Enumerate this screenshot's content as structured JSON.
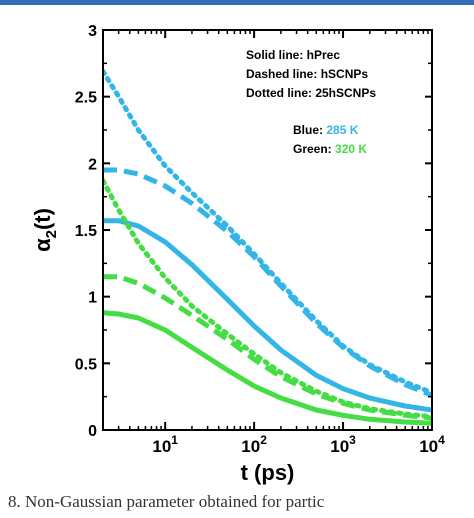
{
  "chart_data": {
    "type": "line",
    "xlabel": "t (ps)",
    "ylabel_base": "α",
    "ylabel_sub": "2",
    "ylabel_suffix": "(t)",
    "x_scale": "log",
    "xlim": [
      2,
      10000
    ],
    "ylim": [
      0,
      3
    ],
    "x_ticks": [
      {
        "value": 10,
        "base": "10",
        "exp": "1"
      },
      {
        "value": 100,
        "base": "10",
        "exp": "2"
      },
      {
        "value": 1000,
        "base": "10",
        "exp": "3"
      },
      {
        "value": 10000,
        "base": "10",
        "exp": "4"
      }
    ],
    "y_ticks": [
      "0",
      "0.5",
      "1",
      "1.5",
      "2",
      "2.5",
      "3"
    ],
    "grid": false,
    "legend_lines": [
      {
        "label": "Solid line:",
        "value": "hPrec"
      },
      {
        "label": "Dashed line:",
        "value": "hSCNPs"
      },
      {
        "label": "Dotted line:",
        "value": "25hSCNPs"
      }
    ],
    "legend_colors": [
      {
        "label": "Blue:",
        "value": "285 K",
        "color": "#33b5e8"
      },
      {
        "label": "Green:",
        "value": "320 K",
        "color": "#44dd44"
      }
    ],
    "series": [
      {
        "color": "#33b5e8",
        "style": "solid",
        "x": [
          2,
          3,
          5,
          10,
          20,
          50,
          100,
          200,
          500,
          1000,
          2000,
          5000,
          10000
        ],
        "y": [
          1.57,
          1.57,
          1.53,
          1.41,
          1.24,
          0.98,
          0.78,
          0.6,
          0.41,
          0.31,
          0.24,
          0.18,
          0.15
        ]
      },
      {
        "color": "#33b5e8",
        "style": "dashed",
        "x": [
          2,
          3,
          5,
          10,
          20,
          50,
          100,
          200,
          500,
          1000,
          2000,
          5000,
          10000
        ],
        "y": [
          1.95,
          1.95,
          1.92,
          1.83,
          1.7,
          1.49,
          1.3,
          1.08,
          0.8,
          0.62,
          0.48,
          0.34,
          0.26
        ]
      },
      {
        "color": "#33b5e8",
        "style": "dotted",
        "x": [
          2,
          3,
          5,
          10,
          20,
          50,
          100,
          200,
          500,
          1000,
          2000,
          5000,
          10000
        ],
        "y": [
          2.69,
          2.5,
          2.25,
          1.98,
          1.78,
          1.53,
          1.32,
          1.1,
          0.82,
          0.63,
          0.49,
          0.36,
          0.28
        ]
      },
      {
        "color": "#44dd44",
        "style": "solid",
        "x": [
          2,
          3,
          5,
          10,
          20,
          50,
          100,
          200,
          500,
          1000,
          2000,
          5000,
          10000
        ],
        "y": [
          0.88,
          0.87,
          0.84,
          0.75,
          0.62,
          0.45,
          0.33,
          0.24,
          0.15,
          0.11,
          0.08,
          0.06,
          0.05
        ]
      },
      {
        "color": "#44dd44",
        "style": "dashed",
        "x": [
          2,
          3,
          5,
          10,
          20,
          50,
          100,
          200,
          500,
          1000,
          2000,
          5000,
          10000
        ],
        "y": [
          1.15,
          1.15,
          1.1,
          0.99,
          0.86,
          0.68,
          0.53,
          0.4,
          0.27,
          0.2,
          0.15,
          0.11,
          0.09
        ]
      },
      {
        "color": "#44dd44",
        "style": "dotted",
        "x": [
          2,
          3,
          5,
          10,
          20,
          50,
          100,
          200,
          500,
          1000,
          2000,
          5000,
          10000
        ],
        "y": [
          1.87,
          1.65,
          1.4,
          1.14,
          0.93,
          0.72,
          0.57,
          0.43,
          0.29,
          0.21,
          0.16,
          0.12,
          0.1
        ]
      }
    ]
  },
  "caption": "8.   Non-Gaussian parameter obtained for partic"
}
